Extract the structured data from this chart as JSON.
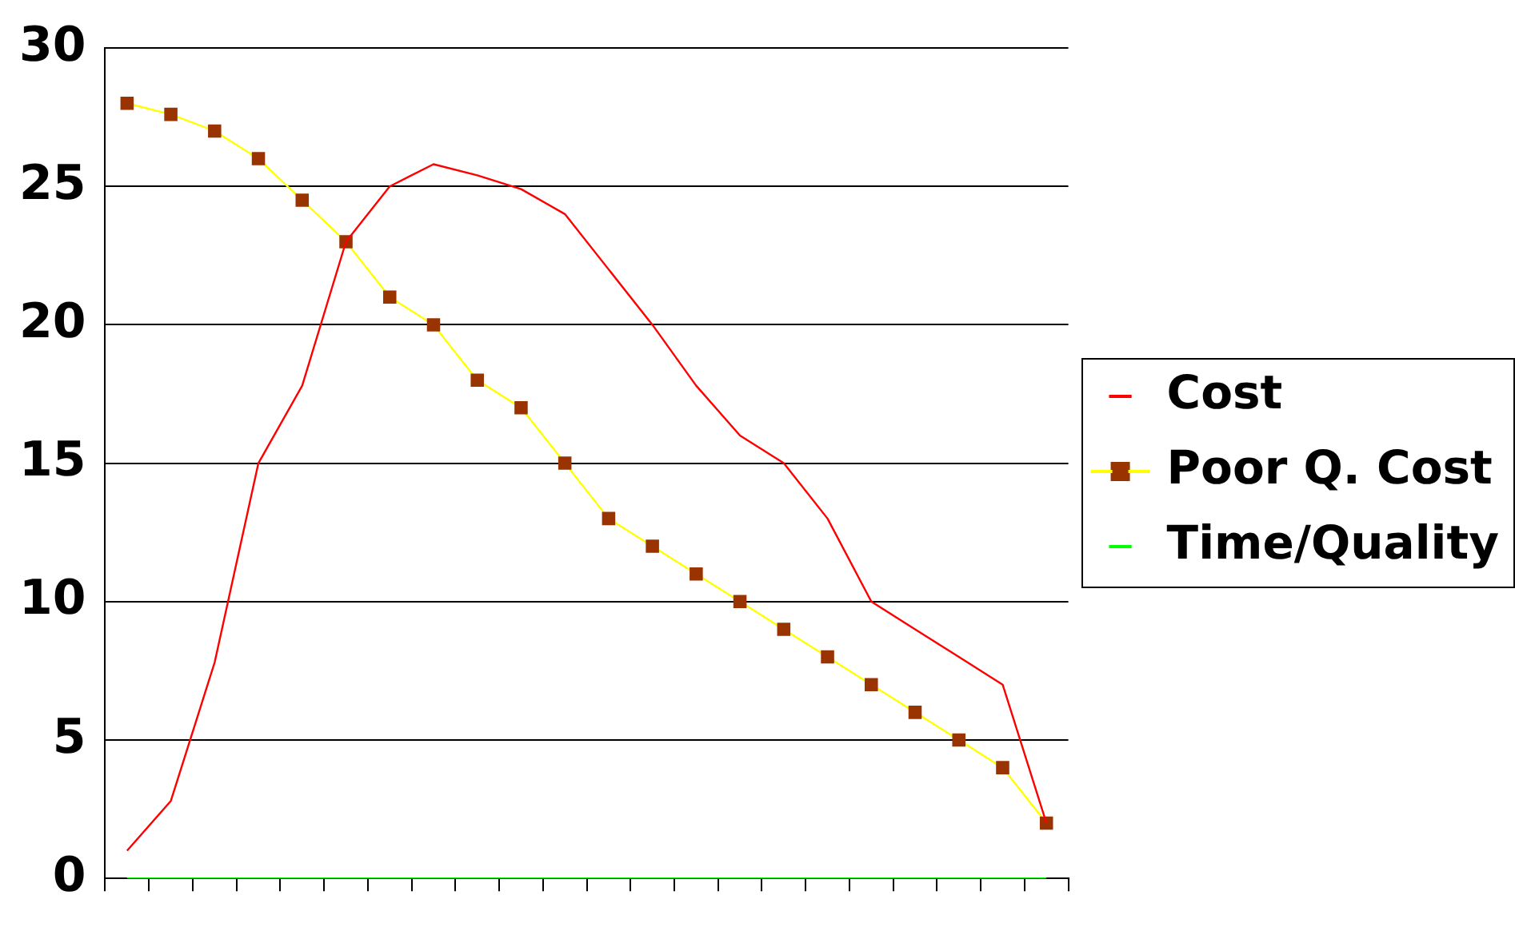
{
  "chart_data": {
    "type": "line",
    "categories": [
      null,
      null,
      null,
      null,
      null,
      null,
      null,
      null,
      null,
      null,
      null,
      null,
      null,
      null,
      null,
      null,
      null,
      null,
      null,
      null,
      null,
      null
    ],
    "series": [
      {
        "name": "Cost",
        "color": "#ff0000",
        "marker": "none",
        "values": [
          1,
          2.8,
          7.8,
          15,
          17.8,
          23,
          25,
          25.8,
          25.4,
          24.9,
          24,
          22,
          20,
          17.8,
          16,
          15,
          13,
          10,
          9,
          8,
          7,
          2
        ]
      },
      {
        "name": "Poor Q. Cost",
        "color": "#ffff00",
        "marker": "square",
        "values": [
          28,
          27.6,
          27,
          26,
          24.5,
          23,
          21,
          20,
          18,
          17,
          15,
          13,
          12,
          11,
          10,
          9,
          8,
          7,
          6,
          5,
          4,
          2
        ]
      },
      {
        "name": "Time/Quality",
        "color": "#00ff00",
        "marker": "none",
        "values": [
          0,
          0,
          0,
          0,
          0,
          0,
          0,
          0,
          0,
          0,
          0,
          0,
          0,
          0,
          0,
          0,
          0,
          0,
          0,
          0,
          0,
          0
        ]
      }
    ],
    "ylim": [
      0,
      30
    ],
    "yticks": [
      0,
      5,
      10,
      15,
      20,
      25,
      30
    ],
    "grid": "y",
    "legend": "right"
  }
}
